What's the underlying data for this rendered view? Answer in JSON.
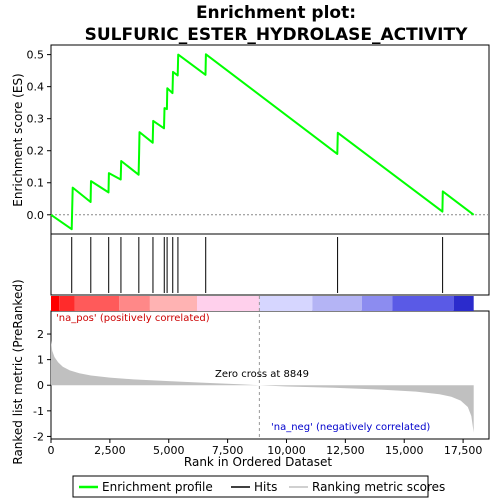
{
  "chart_data": {
    "type": "line",
    "title_line1": "Enrichment plot:",
    "title_line2": "SULFURIC_ESTER_HYDROLASE_ACTIVITY",
    "es_panel": {
      "ylabel": "Enrichment score (ES)",
      "ylim": [
        -0.06,
        0.53
      ],
      "yticks": [
        0.0,
        0.1,
        0.2,
        0.3,
        0.4,
        0.5
      ],
      "ytick_labels": [
        "0.0",
        "0.1",
        "0.2",
        "0.3",
        "0.4",
        "0.5"
      ],
      "line_color": "#00ff00",
      "points": [
        [
          0,
          0.0
        ],
        [
          880,
          -0.045
        ],
        [
          900,
          0.02
        ],
        [
          920,
          0.085
        ],
        [
          1680,
          0.04
        ],
        [
          1700,
          0.105
        ],
        [
          2440,
          0.07
        ],
        [
          2460,
          0.13
        ],
        [
          2960,
          0.11
        ],
        [
          2980,
          0.168
        ],
        [
          3720,
          0.125
        ],
        [
          3740,
          0.19
        ],
        [
          3760,
          0.258
        ],
        [
          4320,
          0.225
        ],
        [
          4340,
          0.293
        ],
        [
          4800,
          0.27
        ],
        [
          4820,
          0.333
        ],
        [
          4920,
          0.33
        ],
        [
          4940,
          0.395
        ],
        [
          5160,
          0.38
        ],
        [
          5180,
          0.446
        ],
        [
          5380,
          0.435
        ],
        [
          5400,
          0.5
        ],
        [
          6560,
          0.437
        ],
        [
          6580,
          0.501
        ],
        [
          12160,
          0.19
        ],
        [
          12180,
          0.256
        ],
        [
          16620,
          0.01
        ],
        [
          16640,
          0.073
        ],
        [
          17950,
          0.0
        ]
      ]
    },
    "hits": [
      880,
      1690,
      2450,
      2970,
      3730,
      4330,
      4810,
      4930,
      5170,
      5390,
      6570,
      12170,
      16630
    ],
    "heatmap": {
      "colors": [
        "#ff0000",
        "#ff2b2b",
        "#ff5a5a",
        "#ff8888",
        "#ffb3b3",
        "#ffd0ec",
        "#d6d6ff",
        "#b4b4f5",
        "#8c8cf0",
        "#5a5ae6",
        "#2b2bcc",
        "#0000cc"
      ],
      "segments": [
        [
          0,
          350,
          0
        ],
        [
          350,
          1000,
          1
        ],
        [
          1000,
          2900,
          2
        ],
        [
          2900,
          4200,
          3
        ],
        [
          4200,
          6200,
          4
        ],
        [
          6200,
          8849,
          5
        ],
        [
          8849,
          11100,
          6
        ],
        [
          11100,
          13200,
          7
        ],
        [
          13200,
          14500,
          8
        ],
        [
          14500,
          17100,
          9
        ],
        [
          17100,
          17950,
          10
        ]
      ]
    },
    "metric_panel": {
      "ylabel": "Ranked list metric (PreRanked)",
      "ylim": [
        -2.1,
        2.9
      ],
      "yticks": [
        -2,
        -1,
        0,
        1,
        2
      ],
      "ytick_labels": [
        "-2",
        "-1",
        "0",
        "1",
        "2"
      ],
      "fill_color": "#c0c0c0",
      "profile": [
        [
          0,
          1.75
        ],
        [
          50,
          1.35
        ],
        [
          150,
          1.1
        ],
        [
          300,
          0.9
        ],
        [
          500,
          0.72
        ],
        [
          800,
          0.58
        ],
        [
          1200,
          0.47
        ],
        [
          1700,
          0.38
        ],
        [
          2500,
          0.3
        ],
        [
          3500,
          0.23
        ],
        [
          5000,
          0.16
        ],
        [
          6500,
          0.1
        ],
        [
          8000,
          0.04
        ],
        [
          8849,
          0.0
        ],
        [
          10000,
          -0.05
        ],
        [
          12000,
          -0.1
        ],
        [
          14000,
          -0.17
        ],
        [
          15500,
          -0.25
        ],
        [
          16500,
          -0.35
        ],
        [
          17000,
          -0.45
        ],
        [
          17400,
          -0.6
        ],
        [
          17700,
          -0.85
        ],
        [
          17850,
          -1.2
        ],
        [
          17950,
          -1.85
        ]
      ],
      "zero_cross_value": 8849,
      "zero_cross_label": "Zero cross at 8849",
      "pos_label": "'na_pos' (positively correlated)",
      "neg_label": "'na_neg' (negatively correlated)",
      "pos_color": "#cc0000",
      "neg_color": "#0000cc"
    },
    "x_axis": {
      "label": "Rank in Ordered Dataset",
      "xlim": [
        0,
        18600
      ],
      "ticks": [
        0,
        2500,
        5000,
        7500,
        10000,
        12500,
        15000,
        17500
      ],
      "tick_labels": [
        "0",
        "2,500",
        "5,000",
        "7,500",
        "10,000",
        "12,500",
        "15,000",
        "17,500"
      ]
    },
    "legend": [
      {
        "label": "Enrichment profile",
        "color": "#00ff00"
      },
      {
        "label": "Hits",
        "color": "#000000"
      },
      {
        "label": "Ranking metric scores",
        "color": "#c0c0c0"
      }
    ]
  }
}
